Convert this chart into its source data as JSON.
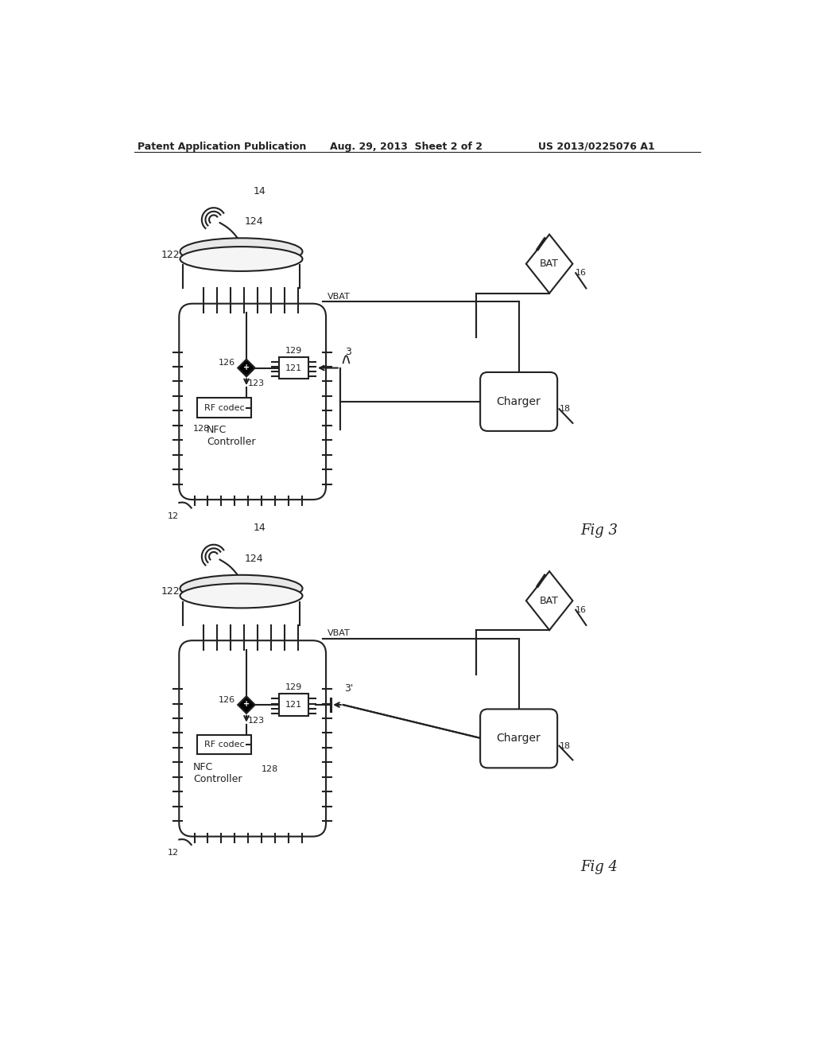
{
  "bg_color": "#ffffff",
  "line_color": "#222222",
  "header_left": "Patent Application Publication",
  "header_mid": "Aug. 29, 2013  Sheet 2 of 2",
  "header_right": "US 2013/0225076 A1"
}
